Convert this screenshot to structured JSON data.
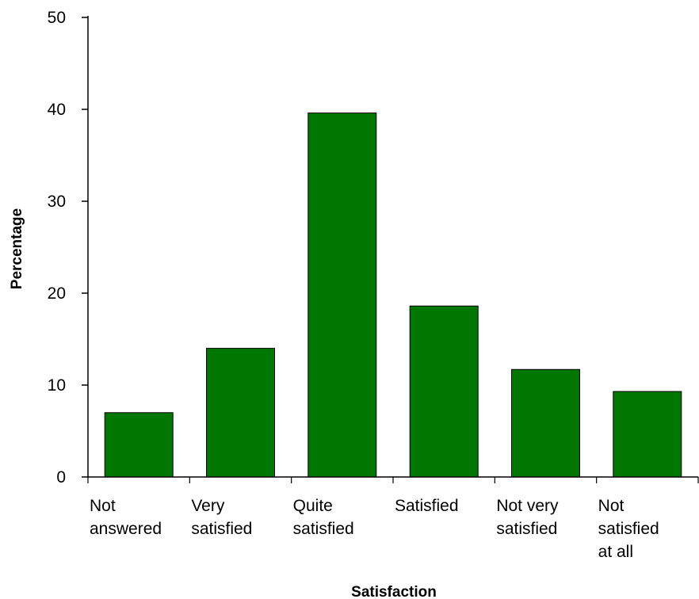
{
  "chart_data": {
    "type": "bar",
    "title": "",
    "xlabel": "Satisfaction",
    "ylabel": "Percentage",
    "ylim": [
      0,
      50
    ],
    "yticks": [
      0,
      10,
      20,
      30,
      40,
      50
    ],
    "grid": false,
    "bar_color": "#007700",
    "categories": [
      [
        "Not",
        "answered"
      ],
      [
        "Very",
        "satisfied"
      ],
      [
        "Quite",
        "satisfied"
      ],
      [
        "Satisfied"
      ],
      [
        "Not very",
        "satisfied"
      ],
      [
        "Not",
        "satisfied",
        "at all"
      ]
    ],
    "values": [
      7.0,
      14.0,
      39.6,
      18.6,
      11.7,
      9.3
    ]
  }
}
